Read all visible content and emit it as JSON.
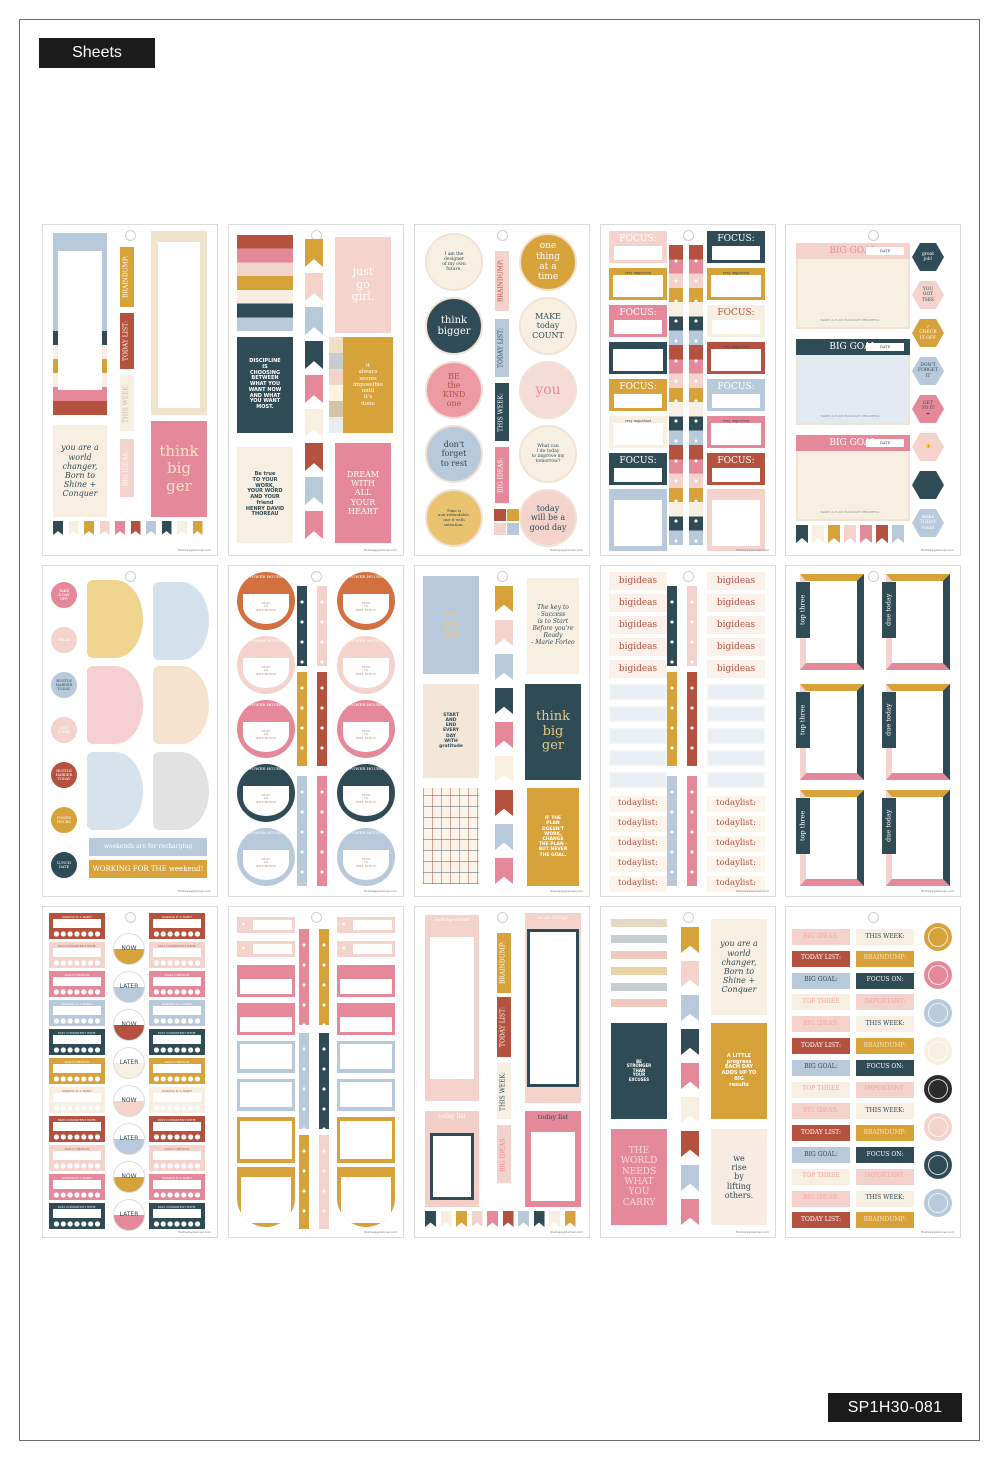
{
  "header": {
    "title": "Sheets"
  },
  "product_code": "SP1H30-081",
  "footer_text": "thehappyplanner.com",
  "palette": {
    "navy": "#2f4b55",
    "rust": "#b5513f",
    "pink": "#e5899a",
    "light_pink": "#f3d3cc",
    "mustard": "#d8a23a",
    "cream": "#f7efe2",
    "blue": "#b7c9da",
    "orange": "#d2703f",
    "charcoal": "#2b2b2b"
  },
  "sheets": [
    {
      "texts": [
        "BRAINDUMP:",
        "TODAY LIST:",
        "THIS WEEK:",
        "BIG IDEAS:",
        "you are a\nworld\nchanger,\nBorn to\nShine +\nConquer",
        "think\nbig\nger"
      ]
    },
    {
      "texts": [
        "just\ngo\ngirl.",
        "DISCIPLINE\nIS\nCHOOSING\nBETWEEN\nWHAT YOU\nWANT NOW\nAND WHAT\nYOU WANT\nMOST.",
        "it\nalways\nseems\nimpossible\nuntil\nit's\ndone",
        "Be true\nTO YOUR\nWORK,\nYOUR WORD\nAND YOUR\nfriend\nHENRY DAVID\nTHOREAU",
        "DREAM\nWITH\nALL\nYOUR\nHEART"
      ]
    },
    {
      "texts": [
        "I am the\ndesigner\nof my own\nfuture.",
        "one\nthing\nat a\ntime",
        "think\nbigger",
        "MAKE\ntoday\nCOUNT",
        "BE\nthe\nKIND\none",
        "you",
        "don't\nforget\nto rest",
        "What can\nI do today\nto improve my\ntomorrow?",
        "Time is\nnon-refundable,\nuse it with\nintention.",
        "today\nwill be a\ngood day",
        "BRAINDUMP:",
        "TODAY LIST:",
        "THIS WEEK:",
        "BIG IDEAS:"
      ]
    },
    {
      "texts": [
        "FOCUS:",
        "very important"
      ]
    },
    {
      "texts": [
        "BIG GOAL",
        "DATE",
        "MAKE A PLAN     EVALUATE PROGRESS",
        "great\njob!",
        "YOU\nGOT\nTHIS",
        "✓\nCHECK\nIT OFF",
        "DON'T\nFORGET\nIT",
        "GET\nTO IT\n➡",
        "👍",
        "make\nTODAY\ncount"
      ]
    },
    {
      "texts": [
        "TAKE\nA DAY\nOFF.",
        "RELAX",
        "HUSTLE\nHARDER\nTODAY.",
        "REST\nTODAY",
        "HUSTLE\nHARDER\nTODAY",
        "POWER\nHOURS",
        "LUNCH\nDATE",
        "weekends are for recharging",
        "WORKING FOR THE  weekend!"
      ]
    },
    {
      "texts": [
        "POWER HOURS",
        "TASK:\n- TO -\nTIME BLOCK:"
      ]
    },
    {
      "texts": [
        "you\ngot\nthis",
        "The key to\nSuccess\nis to Start\nBefore you're\nReady\n- Marie Forleo",
        "START\nAND\nEND\nEVERY\nDAY\nWITH\ngratitude",
        "think\nbig\nger",
        "IF THE\nPLAN\nDOESN'T\nWORK,\nCHANGE\nTHE PLAN -\nBUT NEVER\nTHE GOAL."
      ]
    },
    {
      "texts": [
        "bigideas",
        "todaylist:"
      ]
    },
    {
      "texts": [
        "top three",
        "due today"
      ]
    },
    {
      "texts": [
        "MAKING IT A HABIT",
        "STAY CONSISTENT WITH:",
        "DAILY CHECK-IN",
        "NOW",
        "LATER"
      ]
    },
    {
      "texts": [
        "★"
      ]
    },
    {
      "texts": [
        "looking ahead",
        "BRAINDUMP:",
        "TODAY LIST:",
        "THIS WEEK:",
        "BIG IDEAS:",
        "to do things",
        "today list",
        "today list"
      ]
    },
    {
      "texts": [
        "you are a\nworld\nchanger,\nBorn to\nShine +\nConquer",
        "BE\nSTRONGER\nTHAN\nYOUR\nEXCUSES",
        "A LITTLE\nprogress\nEACH DAY\nADDS UP TO\nBIG\nresults",
        "THE\nWORLD\nNEEDS\nWHAT\nYOU\nCARRY",
        "we\nrise\nby\nlifting\nothers."
      ]
    },
    {
      "texts": [
        "BIG IDEAS:",
        "THIS WEEK:",
        "TODAY LIST:",
        "BRAINDUMP:",
        "BIG GOAL:",
        "FOCUS ON:",
        "TOP THREE",
        "IMPORTANT:"
      ]
    }
  ]
}
